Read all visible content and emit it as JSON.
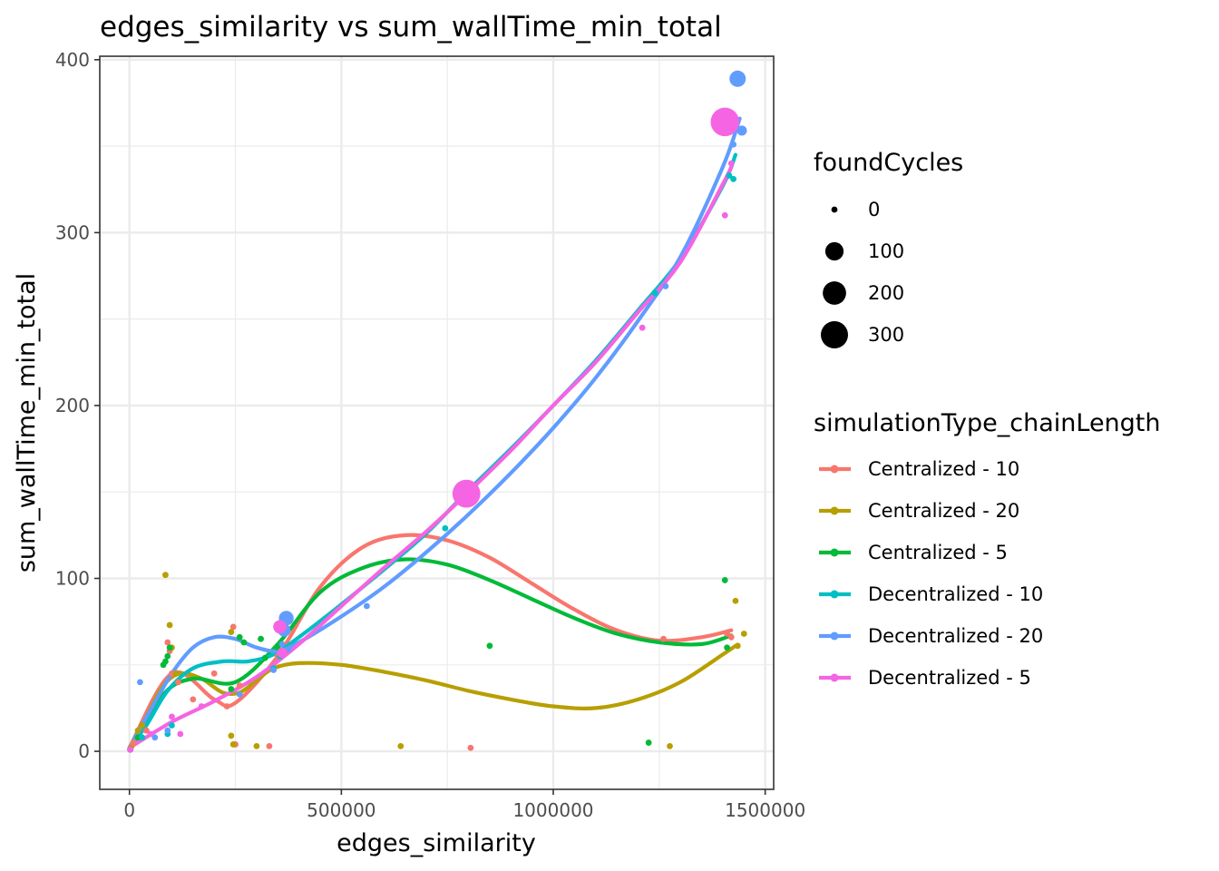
{
  "chart_data": {
    "type": "scatter",
    "title": "edges_similarity  vs  sum_wallTime_min_total",
    "xlabel": "edges_similarity",
    "ylabel": "sum_wallTime_min_total",
    "xlim": [
      -70000,
      1520000
    ],
    "ylim": [
      -22,
      402
    ],
    "x_ticks": [
      0,
      500000,
      1000000,
      1500000
    ],
    "x_tick_labels": [
      "0",
      "500000",
      "1000000",
      "1500000"
    ],
    "y_ticks": [
      0,
      100,
      200,
      300,
      400
    ],
    "y_tick_labels": [
      "0",
      "100",
      "200",
      "300",
      "400"
    ],
    "grid": true,
    "size_legend": {
      "title": "foundCycles",
      "values": [
        0,
        100,
        200,
        300
      ],
      "labels": [
        "0",
        "100",
        "200",
        "300"
      ]
    },
    "color_legend": {
      "title": "simulationType_chainLength",
      "placement": "right"
    },
    "series": [
      {
        "name": "Centralized - 10",
        "color": "#F8766D",
        "points": [
          [
            2000,
            1,
            0
          ],
          [
            5000,
            3,
            0
          ],
          [
            10000,
            5,
            0
          ],
          [
            40000,
            12,
            0
          ],
          [
            90000,
            63,
            0
          ],
          [
            95000,
            58,
            0
          ],
          [
            100000,
            45,
            0
          ],
          [
            115000,
            40,
            0
          ],
          [
            150000,
            30,
            0
          ],
          [
            200000,
            45,
            0
          ],
          [
            230000,
            26,
            0
          ],
          [
            245000,
            72,
            0
          ],
          [
            250000,
            4,
            0
          ],
          [
            260000,
            38,
            0
          ],
          [
            330000,
            3,
            0
          ],
          [
            350000,
            55,
            0
          ],
          [
            370000,
            58,
            0
          ],
          [
            805000,
            2,
            0
          ],
          [
            1260000,
            65,
            0
          ],
          [
            1410000,
            68,
            0
          ],
          [
            1420000,
            66,
            0
          ]
        ],
        "smooth": [
          [
            0,
            2
          ],
          [
            100000,
            45
          ],
          [
            200000,
            30
          ],
          [
            250000,
            28
          ],
          [
            350000,
            55
          ],
          [
            450000,
            95
          ],
          [
            550000,
            118
          ],
          [
            650000,
            125
          ],
          [
            750000,
            122
          ],
          [
            850000,
            112
          ],
          [
            950000,
            97
          ],
          [
            1050000,
            82
          ],
          [
            1150000,
            70
          ],
          [
            1250000,
            64
          ],
          [
            1350000,
            66
          ],
          [
            1420000,
            70
          ]
        ]
      },
      {
        "name": "Centralized - 20",
        "color": "#B79F00",
        "points": [
          [
            3000,
            2,
            0
          ],
          [
            20000,
            12,
            0
          ],
          [
            30000,
            15,
            0
          ],
          [
            85000,
            102,
            0
          ],
          [
            95000,
            73,
            0
          ],
          [
            100000,
            60,
            0
          ],
          [
            110000,
            45,
            0
          ],
          [
            240000,
            69,
            0
          ],
          [
            240000,
            9,
            0
          ],
          [
            245000,
            4,
            0
          ],
          [
            300000,
            3,
            0
          ],
          [
            640000,
            3,
            0
          ],
          [
            1275000,
            3,
            0
          ],
          [
            1430000,
            87,
            0
          ],
          [
            1435000,
            61,
            0
          ],
          [
            1450000,
            68,
            0
          ]
        ],
        "smooth": [
          [
            0,
            2
          ],
          [
            40000,
            20
          ],
          [
            80000,
            38
          ],
          [
            120000,
            45
          ],
          [
            170000,
            42
          ],
          [
            220000,
            34
          ],
          [
            260000,
            34
          ],
          [
            300000,
            41
          ],
          [
            340000,
            48
          ],
          [
            400000,
            51
          ],
          [
            500000,
            50
          ],
          [
            600000,
            46
          ],
          [
            700000,
            41
          ],
          [
            800000,
            35
          ],
          [
            900000,
            30
          ],
          [
            1000000,
            26
          ],
          [
            1100000,
            25
          ],
          [
            1200000,
            30
          ],
          [
            1300000,
            40
          ],
          [
            1400000,
            56
          ],
          [
            1430000,
            61
          ]
        ]
      },
      {
        "name": "Centralized - 5",
        "color": "#00BA38",
        "points": [
          [
            2000,
            1,
            0
          ],
          [
            20000,
            8,
            0
          ],
          [
            80000,
            50,
            0
          ],
          [
            85000,
            52,
            0
          ],
          [
            90000,
            55,
            0
          ],
          [
            95000,
            60,
            0
          ],
          [
            240000,
            36,
            0
          ],
          [
            260000,
            66,
            0
          ],
          [
            270000,
            63,
            0
          ],
          [
            310000,
            65,
            0
          ],
          [
            320000,
            54,
            0
          ],
          [
            350000,
            60,
            0
          ],
          [
            850000,
            61,
            0
          ],
          [
            1225000,
            5,
            0
          ],
          [
            1405000,
            99,
            0
          ],
          [
            1410000,
            60,
            0
          ]
        ],
        "smooth": [
          [
            0,
            2
          ],
          [
            80000,
            33
          ],
          [
            150000,
            42
          ],
          [
            250000,
            40
          ],
          [
            350000,
            62
          ],
          [
            450000,
            92
          ],
          [
            550000,
            106
          ],
          [
            650000,
            111
          ],
          [
            750000,
            108
          ],
          [
            850000,
            99
          ],
          [
            950000,
            88
          ],
          [
            1050000,
            77
          ],
          [
            1150000,
            68
          ],
          [
            1250000,
            63
          ],
          [
            1350000,
            62
          ],
          [
            1420000,
            67
          ]
        ]
      },
      {
        "name": "Decentralized - 10",
        "color": "#00BFC4",
        "points": [
          [
            2000,
            1,
            0
          ],
          [
            30000,
            8,
            0
          ],
          [
            90000,
            10,
            0
          ],
          [
            100000,
            15,
            0
          ],
          [
            340000,
            48,
            0
          ],
          [
            355000,
            55,
            0
          ],
          [
            745000,
            129,
            0
          ],
          [
            1240000,
            265,
            0
          ],
          [
            1415000,
            333,
            0
          ],
          [
            1425000,
            331,
            0
          ],
          [
            1420000,
            368,
            0
          ]
        ],
        "smooth": [
          [
            0,
            2
          ],
          [
            40000,
            15
          ],
          [
            90000,
            35
          ],
          [
            150000,
            48
          ],
          [
            220000,
            52
          ],
          [
            280000,
            52
          ],
          [
            340000,
            56
          ],
          [
            400000,
            66
          ],
          [
            500000,
            85
          ],
          [
            600000,
            105
          ],
          [
            700000,
            126
          ],
          [
            800000,
            151
          ],
          [
            900000,
            175
          ],
          [
            1000000,
            200
          ],
          [
            1100000,
            226
          ],
          [
            1200000,
            255
          ],
          [
            1300000,
            285
          ],
          [
            1400000,
            327
          ],
          [
            1430000,
            345
          ]
        ]
      },
      {
        "name": "Decentralized - 20",
        "color": "#619CFF",
        "points": [
          [
            2000,
            1,
            0
          ],
          [
            25000,
            40,
            0
          ],
          [
            60000,
            8,
            0
          ],
          [
            90000,
            12,
            0
          ],
          [
            260000,
            33,
            0
          ],
          [
            340000,
            47,
            0
          ],
          [
            360000,
            62,
            0
          ],
          [
            365000,
            70,
            30
          ],
          [
            370000,
            77,
            50
          ],
          [
            375000,
            59,
            0
          ],
          [
            560000,
            84,
            0
          ],
          [
            1265000,
            269,
            0
          ],
          [
            1425000,
            351,
            0
          ],
          [
            1435000,
            389,
            70
          ],
          [
            1445000,
            359,
            10
          ]
        ],
        "smooth": [
          [
            0,
            2
          ],
          [
            50000,
            24
          ],
          [
            100000,
            45
          ],
          [
            150000,
            60
          ],
          [
            200000,
            66
          ],
          [
            250000,
            65
          ],
          [
            300000,
            60
          ],
          [
            350000,
            58
          ],
          [
            400000,
            63
          ],
          [
            500000,
            78
          ],
          [
            600000,
            95
          ],
          [
            700000,
            115
          ],
          [
            800000,
            137
          ],
          [
            900000,
            161
          ],
          [
            1000000,
            187
          ],
          [
            1100000,
            216
          ],
          [
            1200000,
            249
          ],
          [
            1300000,
            286
          ],
          [
            1400000,
            338
          ],
          [
            1440000,
            366
          ]
        ]
      },
      {
        "name": "Decentralized - 5",
        "color": "#F564E3",
        "points": [
          [
            2000,
            1,
            0
          ],
          [
            50000,
            10,
            0
          ],
          [
            100000,
            20,
            0
          ],
          [
            120000,
            10,
            0
          ],
          [
            170000,
            26,
            0
          ],
          [
            355000,
            72,
            35
          ],
          [
            360000,
            57,
            10
          ],
          [
            795000,
            149,
            320
          ],
          [
            1210000,
            245,
            0
          ],
          [
            1405000,
            310,
            0
          ],
          [
            1405000,
            364,
            340
          ],
          [
            1420000,
            340,
            0
          ]
        ],
        "smooth": [
          [
            0,
            2
          ],
          [
            100000,
            17
          ],
          [
            200000,
            29
          ],
          [
            300000,
            43
          ],
          [
            400000,
            62
          ],
          [
            500000,
            84
          ],
          [
            600000,
            106
          ],
          [
            700000,
            127
          ],
          [
            800000,
            150
          ],
          [
            900000,
            174
          ],
          [
            1000000,
            200
          ],
          [
            1100000,
            225
          ],
          [
            1200000,
            254
          ],
          [
            1300000,
            283
          ],
          [
            1400000,
            328
          ],
          [
            1420000,
            338
          ]
        ]
      }
    ]
  }
}
